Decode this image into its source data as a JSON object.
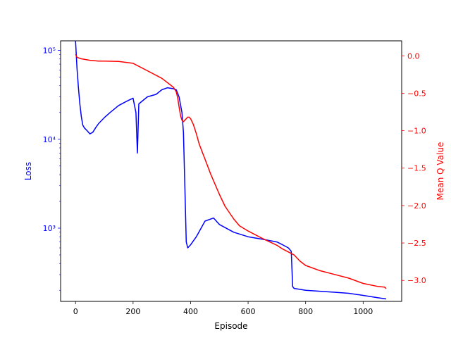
{
  "chart_data": {
    "type": "line",
    "title": "",
    "xlabel": "Episode",
    "xlim": [
      -52,
      1134
    ],
    "x_ticks": [
      0,
      200,
      400,
      600,
      800,
      1000
    ],
    "x_tick_labels": [
      "0",
      "200",
      "400",
      "600",
      "800",
      "1000"
    ],
    "grid": false,
    "left_axis": {
      "label": "Loss",
      "scale": "log",
      "color": "#0000ff",
      "ylim": [
        150,
        128000
      ],
      "major_ticks": [
        1000,
        10000,
        100000
      ],
      "major_tick_labels": [
        "10³",
        "10⁴",
        "10⁵"
      ]
    },
    "right_axis": {
      "label": "Mean Q Value",
      "scale": "linear",
      "color": "#ff0000",
      "ylim": [
        -3.28,
        0.2
      ],
      "ticks": [
        0.0,
        -0.5,
        -1.0,
        -1.5,
        -2.0,
        -2.5,
        -3.0
      ],
      "tick_labels": [
        "0.0",
        "−0.5",
        "−1.0",
        "−1.5",
        "−2.0",
        "−2.5",
        "−3.0"
      ]
    },
    "series": [
      {
        "axis": "left",
        "color": "#0000ff",
        "x": [
          0,
          5,
          10,
          15,
          20,
          25,
          30,
          40,
          50,
          60,
          70,
          80,
          100,
          120,
          150,
          180,
          200,
          210,
          215,
          220,
          250,
          280,
          300,
          320,
          340,
          350,
          360,
          370,
          375,
          380,
          385,
          390,
          400,
          420,
          450,
          480,
          500,
          550,
          600,
          650,
          700,
          720,
          740,
          750,
          755,
          760,
          780,
          800,
          850,
          900,
          950,
          1000,
          1050,
          1080
        ],
        "y": [
          130000,
          62000,
          38000,
          25000,
          18000,
          14500,
          13500,
          12500,
          11500,
          12000,
          13500,
          15000,
          17500,
          20000,
          24000,
          27000,
          29000,
          20000,
          7000,
          25000,
          30000,
          32000,
          36000,
          38000,
          37000,
          36000,
          30000,
          20000,
          12000,
          3000,
          700,
          600,
          650,
          800,
          1200,
          1300,
          1100,
          900,
          800,
          750,
          700,
          650,
          600,
          550,
          220,
          210,
          205,
          200,
          195,
          190,
          185,
          175,
          165,
          160
        ]
      },
      {
        "axis": "right",
        "color": "#ff0000",
        "x": [
          0,
          5,
          20,
          50,
          80,
          100,
          150,
          200,
          250,
          300,
          320,
          340,
          350,
          355,
          360,
          365,
          370,
          375,
          380,
          385,
          390,
          395,
          400,
          410,
          420,
          430,
          450,
          470,
          500,
          520,
          550,
          570,
          600,
          650,
          700,
          720,
          740,
          760,
          780,
          800,
          850,
          900,
          950,
          1000,
          1050,
          1075,
          1080
        ],
        "y": [
          0.02,
          -0.02,
          -0.04,
          -0.06,
          -0.07,
          -0.07,
          -0.075,
          -0.1,
          -0.2,
          -0.3,
          -0.36,
          -0.42,
          -0.48,
          -0.56,
          -0.68,
          -0.8,
          -0.86,
          -0.88,
          -0.86,
          -0.84,
          -0.82,
          -0.82,
          -0.84,
          -0.92,
          -1.04,
          -1.18,
          -1.38,
          -1.58,
          -1.85,
          -2.01,
          -2.18,
          -2.27,
          -2.34,
          -2.44,
          -2.53,
          -2.58,
          -2.62,
          -2.66,
          -2.74,
          -2.8,
          -2.87,
          -2.92,
          -2.97,
          -3.04,
          -3.08,
          -3.09,
          -3.11
        ]
      }
    ]
  }
}
